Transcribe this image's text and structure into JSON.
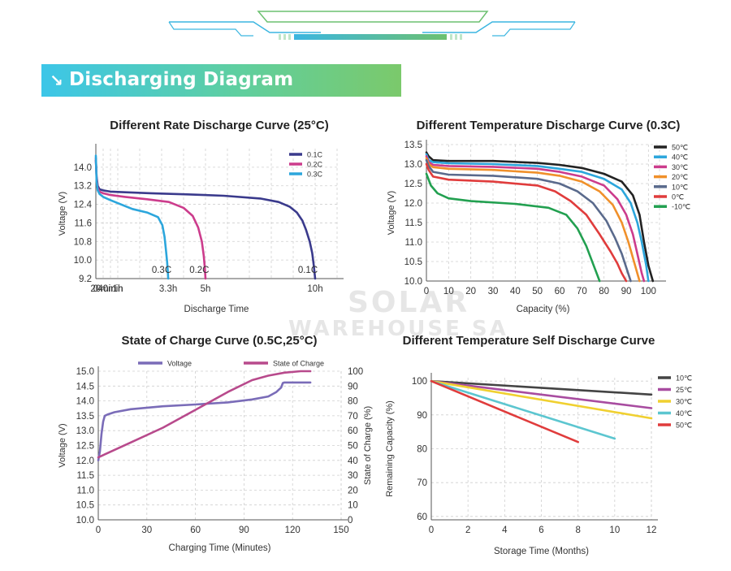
{
  "banner": {
    "title": "Discharging Diagram",
    "icon": "arrow-down-right-icon"
  },
  "watermark": {
    "line1": "SOLAR",
    "line2": "WAREHOUSE SA"
  },
  "colors": {
    "banner_start": "#3cc6e8",
    "banner_end": "#7bc96b"
  },
  "chart_data": [
    {
      "type": "line",
      "title": "Different Rate Discharge Curve (25°C)",
      "xlabel": "Discharge Time",
      "ylabel": "Voltage (V)",
      "xlim": [
        0,
        660
      ],
      "ylim": [
        9.2,
        14.8
      ],
      "x_ticks": [
        {
          "v": 0,
          "label": "0"
        },
        {
          "v": 20,
          "label": "20min"
        },
        {
          "v": 40,
          "label": "40min"
        },
        {
          "v": 60,
          "label": "1h"
        },
        {
          "v": 198,
          "label": "3.3h"
        },
        {
          "v": 300,
          "label": "5h"
        },
        {
          "v": 600,
          "label": "10h"
        }
      ],
      "grid_x": [
        20,
        40,
        60,
        120,
        180,
        240,
        300,
        360,
        420,
        480,
        540,
        600
      ],
      "y_ticks": [
        9.2,
        10.0,
        10.8,
        11.6,
        12.4,
        13.2,
        14.0
      ],
      "grid": true,
      "legend_position": "top-right",
      "annotations": [
        {
          "text": "0.3C",
          "x": 180,
          "y": 9.45
        },
        {
          "text": "0.2C",
          "x": 283,
          "y": 9.45
        },
        {
          "text": "0.1C",
          "x": 580,
          "y": 9.45
        }
      ],
      "series": [
        {
          "name": "0.1C",
          "color": "#3a3a8c",
          "x": [
            0,
            2,
            5,
            10,
            20,
            40,
            80,
            150,
            250,
            350,
            450,
            500,
            530,
            550,
            565,
            575,
            585,
            592,
            596,
            598,
            600
          ],
          "y": [
            14.3,
            13.6,
            13.2,
            13.05,
            13.0,
            12.95,
            12.92,
            12.88,
            12.83,
            12.77,
            12.65,
            12.5,
            12.3,
            12.05,
            11.7,
            11.3,
            10.8,
            10.3,
            9.8,
            9.5,
            9.2
          ]
        },
        {
          "name": "0.2C",
          "color": "#cc3c8c",
          "x": [
            0,
            2,
            5,
            10,
            20,
            40,
            80,
            140,
            200,
            240,
            265,
            280,
            290,
            295,
            298,
            300
          ],
          "y": [
            14.4,
            13.5,
            13.1,
            12.95,
            12.88,
            12.8,
            12.72,
            12.62,
            12.5,
            12.25,
            11.9,
            11.4,
            10.8,
            10.2,
            9.7,
            9.2
          ]
        },
        {
          "name": "0.3C",
          "color": "#2ca6dc",
          "x": [
            0,
            2,
            5,
            10,
            20,
            40,
            60,
            100,
            140,
            170,
            182,
            188,
            192,
            195,
            197,
            198
          ],
          "y": [
            14.5,
            13.4,
            13.0,
            12.85,
            12.72,
            12.58,
            12.45,
            12.2,
            12.05,
            11.85,
            11.5,
            11.0,
            10.4,
            9.9,
            9.5,
            9.2
          ]
        }
      ]
    },
    {
      "type": "line",
      "title": "Different Temperature Discharge Curve (0.3C)",
      "xlabel": "Capacity (%)",
      "ylabel": "Voltage (V)",
      "xlim": [
        0,
        105
      ],
      "ylim": [
        10.0,
        13.5
      ],
      "x_ticks": [
        0,
        10,
        20,
        30,
        40,
        50,
        60,
        70,
        80,
        90,
        100
      ],
      "y_ticks": [
        10.0,
        10.5,
        11.0,
        11.5,
        12.0,
        12.5,
        13.0,
        13.5
      ],
      "grid": true,
      "legend_position": "top-right",
      "series": [
        {
          "name": "50℃",
          "color": "#222222",
          "x": [
            0,
            1,
            3,
            10,
            30,
            50,
            60,
            70,
            80,
            88,
            93,
            96,
            98,
            100,
            102
          ],
          "y": [
            13.3,
            13.2,
            13.1,
            13.08,
            13.08,
            13.03,
            12.98,
            12.9,
            12.75,
            12.55,
            12.2,
            11.7,
            11.0,
            10.4,
            10.0
          ]
        },
        {
          "name": "40℃",
          "color": "#2ca6dc",
          "x": [
            0,
            1,
            3,
            10,
            30,
            50,
            60,
            70,
            80,
            88,
            92,
            95,
            97,
            99,
            100
          ],
          "y": [
            13.25,
            13.1,
            13.05,
            13.02,
            13.0,
            12.95,
            12.88,
            12.8,
            12.62,
            12.35,
            12.0,
            11.5,
            11.0,
            10.4,
            10.0
          ]
        },
        {
          "name": "30℃",
          "color": "#cc3c8c",
          "x": [
            0,
            1,
            3,
            10,
            30,
            50,
            60,
            70,
            80,
            86,
            90,
            93,
            95,
            97,
            98
          ],
          "y": [
            13.2,
            13.05,
            12.98,
            12.95,
            12.93,
            12.88,
            12.8,
            12.68,
            12.45,
            12.1,
            11.7,
            11.2,
            10.7,
            10.2,
            10.0
          ]
        },
        {
          "name": "20℃",
          "color": "#f0902a",
          "x": [
            0,
            1,
            3,
            10,
            30,
            50,
            60,
            70,
            78,
            84,
            88,
            91,
            94,
            96
          ],
          "y": [
            13.15,
            13.0,
            12.92,
            12.88,
            12.85,
            12.78,
            12.7,
            12.55,
            12.3,
            11.95,
            11.5,
            11.0,
            10.4,
            10.0
          ]
        },
        {
          "name": "10℃",
          "color": "#5a6a8c",
          "x": [
            0,
            1,
            3,
            10,
            30,
            50,
            60,
            68,
            75,
            81,
            85,
            88,
            90,
            92
          ],
          "y": [
            13.1,
            12.95,
            12.8,
            12.73,
            12.7,
            12.62,
            12.5,
            12.3,
            12.0,
            11.55,
            11.1,
            10.7,
            10.35,
            10.0
          ]
        },
        {
          "name": "0℃",
          "color": "#e03c3c",
          "x": [
            0,
            1,
            3,
            10,
            30,
            50,
            58,
            65,
            72,
            78,
            83,
            86,
            88,
            90
          ],
          "y": [
            13.0,
            12.85,
            12.68,
            12.6,
            12.55,
            12.45,
            12.3,
            12.05,
            11.7,
            11.2,
            10.75,
            10.45,
            10.2,
            10.0
          ]
        },
        {
          "name": "-10℃",
          "color": "#22a050",
          "x": [
            0,
            2,
            5,
            10,
            20,
            40,
            55,
            63,
            68,
            72,
            75,
            77,
            78
          ],
          "y": [
            12.75,
            12.45,
            12.25,
            12.12,
            12.05,
            11.98,
            11.88,
            11.7,
            11.35,
            10.9,
            10.45,
            10.15,
            10.0
          ]
        }
      ]
    },
    {
      "type": "line",
      "title": "State of Charge Curve (0.5C,25°C)",
      "xlabel": "Charging Time (Minutes)",
      "ylabel": "Voltage (V)",
      "y2label": "State of Charge (%)",
      "xlim": [
        0,
        150
      ],
      "ylim": [
        10.0,
        15.0
      ],
      "y2lim": [
        0,
        100
      ],
      "x_ticks": [
        0,
        30,
        60,
        90,
        120,
        150
      ],
      "y_ticks": [
        10.0,
        10.5,
        11.0,
        11.5,
        12.0,
        12.5,
        13.0,
        13.5,
        14.0,
        14.5,
        15.0
      ],
      "y2_ticks": [
        0,
        10,
        20,
        30,
        40,
        50,
        60,
        70,
        80,
        90,
        100
      ],
      "grid": true,
      "legend_position": "top",
      "series": [
        {
          "name": "Voltage",
          "color": "#7a6cb8",
          "axis": "left",
          "x": [
            0,
            1,
            2,
            3,
            4,
            6,
            10,
            20,
            40,
            60,
            80,
            95,
            105,
            110,
            113,
            114,
            115,
            120,
            125,
            131
          ],
          "y": [
            12.0,
            12.3,
            12.9,
            13.3,
            13.5,
            13.55,
            13.62,
            13.72,
            13.82,
            13.88,
            13.95,
            14.05,
            14.15,
            14.3,
            14.45,
            14.6,
            14.62,
            14.62,
            14.62,
            14.62
          ]
        },
        {
          "name": "State of Charge",
          "color": "#b84a8c",
          "axis": "right",
          "x": [
            0,
            20,
            40,
            60,
            80,
            95,
            105,
            115,
            125,
            131
          ],
          "y": [
            42,
            52,
            62,
            74,
            86,
            94,
            97,
            99,
            100,
            100
          ]
        }
      ]
    },
    {
      "type": "line",
      "title": "Different Temperature Self Discharge Curve",
      "xlabel": "Storage Time (Months)",
      "ylabel": "Remaining Capacity (%)",
      "xlim": [
        0,
        12
      ],
      "ylim": [
        59,
        101
      ],
      "x_ticks": [
        0,
        2,
        4,
        6,
        8,
        10,
        12
      ],
      "y_ticks": [
        60,
        70,
        80,
        90,
        100
      ],
      "grid": true,
      "legend_position": "top-right",
      "series": [
        {
          "name": "10℃",
          "color": "#444444",
          "x": [
            0,
            12
          ],
          "y": [
            100,
            96
          ]
        },
        {
          "name": "25℃",
          "color": "#a84ca0",
          "x": [
            0,
            12
          ],
          "y": [
            100,
            92
          ]
        },
        {
          "name": "30℃",
          "color": "#f0d030",
          "x": [
            0,
            12
          ],
          "y": [
            100,
            89
          ]
        },
        {
          "name": "40℃",
          "color": "#5cc6d0",
          "x": [
            0,
            10
          ],
          "y": [
            100,
            83
          ]
        },
        {
          "name": "50℃",
          "color": "#e03c3c",
          "x": [
            0,
            8
          ],
          "y": [
            100,
            82
          ]
        }
      ]
    }
  ]
}
